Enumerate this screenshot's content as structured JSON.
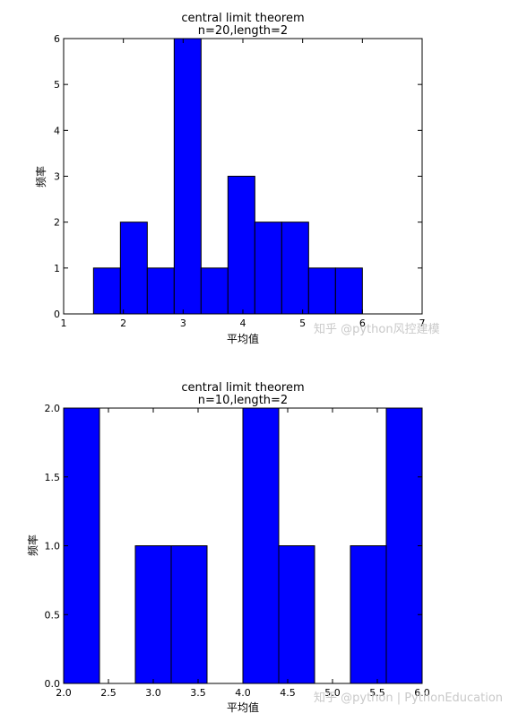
{
  "chart_data": [
    {
      "type": "bar",
      "title": "central limit theorem",
      "subtitle": "n=20,length=2",
      "xlabel": "平均值",
      "ylabel": "频率",
      "xlim": [
        1,
        7
      ],
      "ylim": [
        0,
        6
      ],
      "xticks": [
        "1",
        "2",
        "3",
        "4",
        "5",
        "6",
        "7"
      ],
      "yticks": [
        "0",
        "1",
        "2",
        "3",
        "4",
        "5",
        "6"
      ],
      "bin_width": 0.45,
      "bins": [
        {
          "x0": 1.5,
          "value": 1
        },
        {
          "x0": 1.95,
          "value": 2
        },
        {
          "x0": 2.4,
          "value": 1
        },
        {
          "x0": 2.85,
          "value": 6
        },
        {
          "x0": 3.3,
          "value": 1
        },
        {
          "x0": 3.75,
          "value": 3
        },
        {
          "x0": 4.2,
          "value": 2
        },
        {
          "x0": 4.65,
          "value": 2
        },
        {
          "x0": 5.1,
          "value": 1
        },
        {
          "x0": 5.55,
          "value": 1
        }
      ],
      "bar_color": "#0000ff",
      "grid": false
    },
    {
      "type": "bar",
      "title": "central limit theorem",
      "subtitle": "n=10,length=2",
      "xlabel": "平均值",
      "ylabel": "频率",
      "xlim": [
        2.0,
        6.0
      ],
      "ylim": [
        0.0,
        2.0
      ],
      "xticks": [
        "2.0",
        "2.5",
        "3.0",
        "3.5",
        "4.0",
        "4.5",
        "5.0",
        "5.5",
        "6.0"
      ],
      "yticks": [
        "0.0",
        "0.5",
        "1.0",
        "1.5",
        "2.0"
      ],
      "bin_width": 0.4,
      "bins": [
        {
          "x0": 2.0,
          "value": 2
        },
        {
          "x0": 2.4,
          "value": 0
        },
        {
          "x0": 2.8,
          "value": 1
        },
        {
          "x0": 3.2,
          "value": 1
        },
        {
          "x0": 3.6,
          "value": 0
        },
        {
          "x0": 4.0,
          "value": 2
        },
        {
          "x0": 4.4,
          "value": 1
        },
        {
          "x0": 4.8,
          "value": 0
        },
        {
          "x0": 5.2,
          "value": 1
        },
        {
          "x0": 5.6,
          "value": 2
        }
      ],
      "bar_color": "#0000ff",
      "grid": false
    }
  ],
  "watermarks": {
    "top": "知乎 @python风控建模",
    "bottom": "知乎 @python | PythonEducation"
  }
}
